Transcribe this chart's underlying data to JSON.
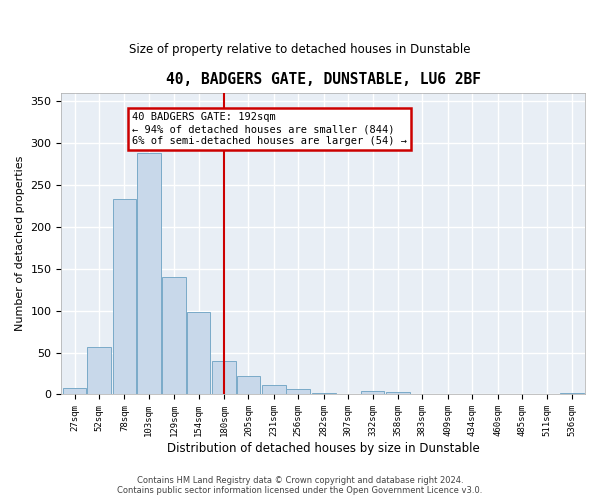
{
  "title": "40, BADGERS GATE, DUNSTABLE, LU6 2BF",
  "subtitle": "Size of property relative to detached houses in Dunstable",
  "xlabel": "Distribution of detached houses by size in Dunstable",
  "ylabel": "Number of detached properties",
  "bar_color": "#c8d8ea",
  "bar_edge_color": "#7aaac8",
  "background_color": "#e8eef5",
  "grid_color": "#ffffff",
  "property_size": 192,
  "property_line_color": "#cc0000",
  "annotation_line1": "40 BADGERS GATE: 192sqm",
  "annotation_line2": "← 94% of detached houses are smaller (844)",
  "annotation_line3": "6% of semi-detached houses are larger (54) →",
  "annotation_box_color": "#cc0000",
  "footer_line1": "Contains HM Land Registry data © Crown copyright and database right 2024.",
  "footer_line2": "Contains public sector information licensed under the Open Government Licence v3.0.",
  "bin_starts": [
    27,
    52,
    78,
    103,
    129,
    154,
    180,
    205,
    231,
    256,
    282,
    307,
    332,
    358,
    383,
    409,
    434,
    460,
    485,
    511,
    536
  ],
  "bin_width": 25,
  "bar_heights": [
    8,
    57,
    233,
    288,
    140,
    98,
    40,
    22,
    11,
    6,
    2,
    0,
    4,
    3,
    0,
    0,
    0,
    0,
    0,
    0,
    2
  ],
  "ylim": [
    0,
    360
  ],
  "yticks": [
    0,
    50,
    100,
    150,
    200,
    250,
    300,
    350
  ]
}
